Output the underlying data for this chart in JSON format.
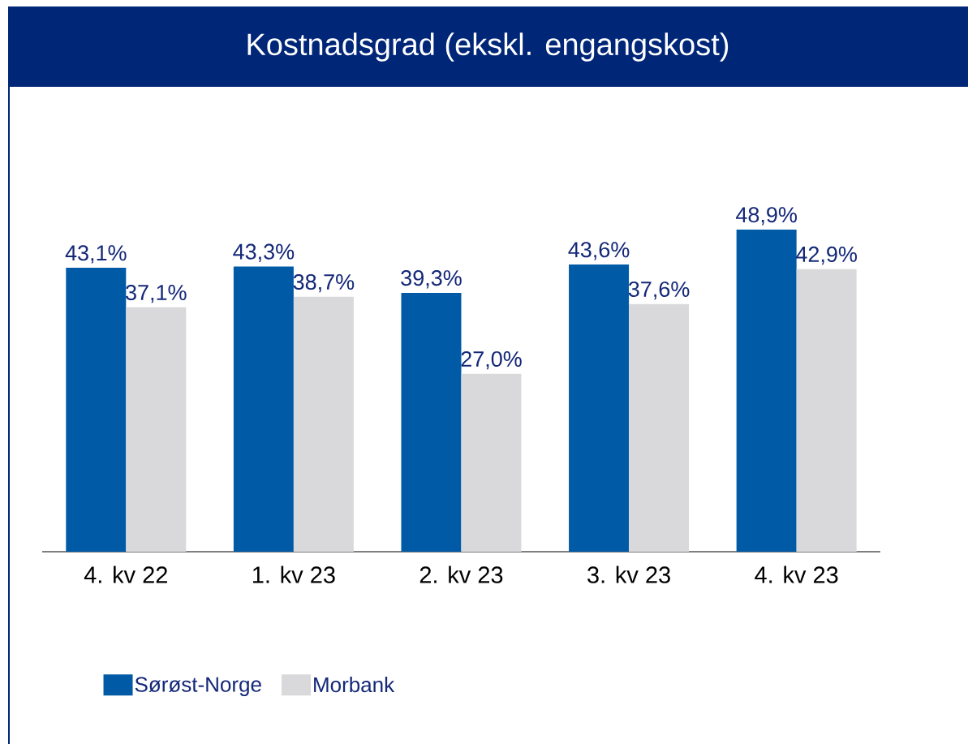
{
  "chart_data": {
    "type": "bar",
    "title": "Kostnadsgrad (ekskl. engangskost)",
    "categories": [
      "4. kv 22",
      "1. kv 23",
      "2. kv 23",
      "3. kv 23",
      "4. kv 23"
    ],
    "series": [
      {
        "name": "Sørøst-Norge",
        "color": "#005aa6",
        "values": [
          43.1,
          43.3,
          39.3,
          43.6,
          48.9
        ],
        "value_labels": [
          "43,1%",
          "43,3%",
          "39,3%",
          "43,6%",
          "48,9%"
        ]
      },
      {
        "name": "Morbank",
        "color": "#d9d9db",
        "values": [
          37.1,
          38.7,
          27.0,
          37.6,
          42.9
        ],
        "value_labels": [
          "37,1%",
          "38,7%",
          "27,0%",
          "37,6%",
          "42,9%"
        ]
      }
    ],
    "legend": "bottom left"
  }
}
